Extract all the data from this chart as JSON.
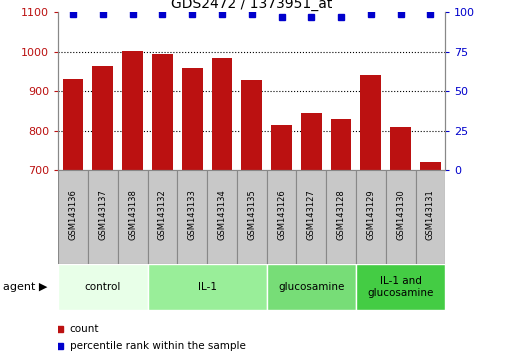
{
  "title": "GDS2472 / 1373951_at",
  "samples": [
    "GSM143136",
    "GSM143137",
    "GSM143138",
    "GSM143132",
    "GSM143133",
    "GSM143134",
    "GSM143135",
    "GSM143126",
    "GSM143127",
    "GSM143128",
    "GSM143129",
    "GSM143130",
    "GSM143131"
  ],
  "counts": [
    930,
    965,
    1002,
    995,
    960,
    985,
    928,
    815,
    845,
    830,
    940,
    810,
    720
  ],
  "percentile_ranks": [
    99,
    99,
    99,
    99,
    99,
    99,
    99,
    97,
    97,
    97,
    99,
    99,
    99
  ],
  "groups": [
    {
      "label": "control",
      "start": 0,
      "end": 3,
      "color": "#e8ffe8"
    },
    {
      "label": "IL-1",
      "start": 3,
      "end": 7,
      "color": "#99ee99"
    },
    {
      "label": "glucosamine",
      "start": 7,
      "end": 10,
      "color": "#77dd77"
    },
    {
      "label": "IL-1 and\nglucosamine",
      "start": 10,
      "end": 13,
      "color": "#44cc44"
    }
  ],
  "bar_color": "#bb1111",
  "dot_color": "#0000cc",
  "ylim_left": [
    700,
    1100
  ],
  "ylim_right": [
    0,
    100
  ],
  "yticks_left": [
    700,
    800,
    900,
    1000,
    1100
  ],
  "yticks_right": [
    0,
    25,
    50,
    75,
    100
  ],
  "legend_count_color": "#bb1111",
  "legend_dot_color": "#0000cc",
  "tick_area_color": "#c8c8c8",
  "tick_border_color": "#888888",
  "agent_arrow": "▶"
}
